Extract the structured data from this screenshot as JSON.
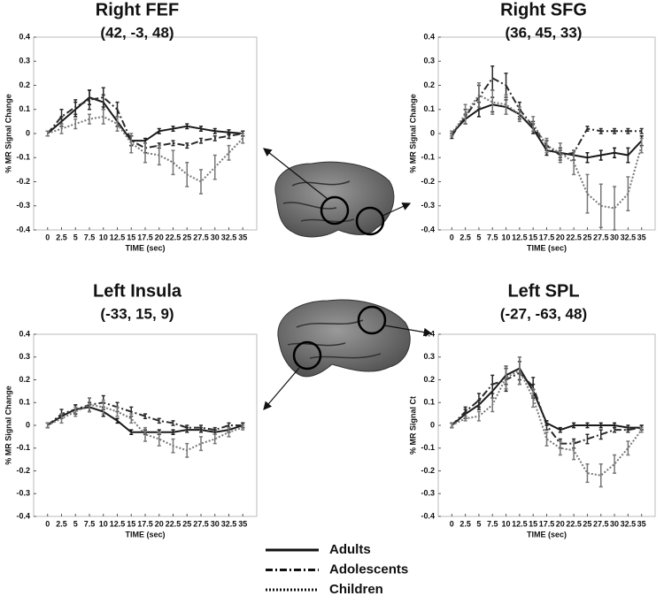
{
  "chart_data": [
    {
      "type": "line",
      "title": "Right FEF",
      "subtitle": "(42, -3, 48)",
      "xlabel": "TIME (sec)",
      "ylabel": "% MR Signal Change",
      "x": [
        0,
        2.5,
        5,
        7.5,
        10,
        12.5,
        15,
        17.5,
        20,
        22.5,
        25,
        27.5,
        30,
        32.5,
        35
      ],
      "xlim": [
        -2.5,
        37.5
      ],
      "xticks": [
        0,
        2.5,
        5,
        7.5,
        10,
        12.5,
        15,
        17.5,
        20,
        22.5,
        25,
        27.5,
        30,
        32.5,
        35
      ],
      "ylim": [
        -0.4,
        0.4
      ],
      "yticks": [
        0.4,
        0.3,
        0.2,
        0.1,
        0,
        -0.1,
        -0.2,
        -0.3,
        -0.4
      ],
      "series": [
        {
          "style": "solid",
          "color": "#1a1a1a",
          "values": [
            0,
            0.05,
            0.1,
            0.15,
            0.13,
            0.05,
            -0.03,
            -0.03,
            0.01,
            0.02,
            0.03,
            0.02,
            0.01,
            0.005,
            0
          ],
          "errors": [
            0.01,
            0.02,
            0.03,
            0.03,
            0.03,
            0.02,
            0.02,
            0.01,
            0.01,
            0.01,
            0.01,
            0.01,
            0.01,
            0.01,
            0.01
          ]
        },
        {
          "style": "dashdot",
          "color": "#2a2a2a",
          "values": [
            0,
            0.07,
            0.11,
            0.14,
            0.15,
            0.1,
            -0.03,
            -0.06,
            -0.05,
            -0.04,
            -0.05,
            -0.03,
            -0.02,
            -0.01,
            0
          ],
          "errors": [
            0.01,
            0.03,
            0.03,
            0.04,
            0.04,
            0.03,
            0.02,
            0.02,
            0.01,
            0.01,
            0.01,
            0.01,
            0.01,
            0.01,
            0.01
          ]
        },
        {
          "style": "dotted",
          "color": "#777777",
          "values": [
            0,
            0.02,
            0.04,
            0.06,
            0.07,
            0.04,
            -0.04,
            -0.08,
            -0.09,
            -0.12,
            -0.17,
            -0.2,
            -0.14,
            -0.08,
            -0.02
          ],
          "errors": [
            0.01,
            0.02,
            0.02,
            0.02,
            0.03,
            0.03,
            0.04,
            0.04,
            0.04,
            0.05,
            0.05,
            0.05,
            0.05,
            0.03,
            0.02
          ]
        }
      ]
    },
    {
      "type": "line",
      "title": "Right SFG",
      "subtitle": "(36, 45, 33)",
      "xlabel": "TIME (sec)",
      "ylabel": "% MR Signal Change",
      "x": [
        0,
        2.5,
        5,
        7.5,
        10,
        12.5,
        15,
        17.5,
        20,
        22.5,
        25,
        27.5,
        30,
        32.5,
        35
      ],
      "xlim": [
        -2.5,
        37.5
      ],
      "xticks": [
        0,
        2.5,
        5,
        7.5,
        10,
        12.5,
        15,
        17.5,
        20,
        22.5,
        25,
        27.5,
        30,
        32.5,
        35
      ],
      "ylim": [
        -0.4,
        0.4
      ],
      "yticks": [
        0.4,
        0.3,
        0.2,
        0.1,
        0,
        -0.1,
        -0.2,
        -0.3,
        -0.4
      ],
      "series": [
        {
          "style": "solid",
          "color": "#1a1a1a",
          "values": [
            0,
            0.06,
            0.1,
            0.12,
            0.11,
            0.08,
            0.02,
            -0.07,
            -0.08,
            -0.09,
            -0.1,
            -0.09,
            -0.08,
            -0.09,
            -0.03
          ],
          "errors": [
            0.01,
            0.02,
            0.03,
            0.03,
            0.03,
            0.02,
            0.02,
            0.02,
            0.02,
            0.02,
            0.02,
            0.02,
            0.02,
            0.03,
            0.02
          ]
        },
        {
          "style": "dashdot",
          "color": "#2a2a2a",
          "values": [
            -0.01,
            0.07,
            0.15,
            0.23,
            0.2,
            0.1,
            0.03,
            -0.05,
            -0.09,
            -0.08,
            0.02,
            0.01,
            0.01,
            0.01,
            0.01
          ],
          "errors": [
            0.01,
            0.03,
            0.05,
            0.05,
            0.05,
            0.03,
            0.02,
            0.02,
            0.02,
            0.01,
            0.01,
            0.01,
            0.01,
            0.01,
            0.01
          ]
        },
        {
          "style": "dotted",
          "color": "#777777",
          "values": [
            0,
            0.08,
            0.16,
            0.13,
            0.12,
            0.08,
            0.04,
            -0.05,
            -0.08,
            -0.12,
            -0.25,
            -0.3,
            -0.31,
            -0.25,
            -0.05
          ],
          "errors": [
            0.01,
            0.04,
            0.05,
            0.05,
            0.04,
            0.03,
            0.03,
            0.03,
            0.04,
            0.05,
            0.08,
            0.09,
            0.09,
            0.07,
            0.03
          ]
        }
      ]
    },
    {
      "type": "line",
      "title": "Left Insula",
      "subtitle": "(-33, 15, 9)",
      "xlabel": "TIME (sec)",
      "ylabel": "% MR Signal Change",
      "x": [
        0,
        2.5,
        5,
        7.5,
        10,
        12.5,
        15,
        17.5,
        20,
        22.5,
        25,
        27.5,
        30,
        32.5,
        35
      ],
      "xlim": [
        -2.5,
        37.5
      ],
      "xticks": [
        0,
        2.5,
        5,
        7.5,
        10,
        12.5,
        15,
        17.5,
        20,
        22.5,
        25,
        27.5,
        30,
        32.5,
        35
      ],
      "ylim": [
        -0.4,
        0.4
      ],
      "yticks": [
        0.4,
        0.3,
        0.2,
        0.1,
        0,
        -0.1,
        -0.2,
        -0.3,
        -0.4
      ],
      "series": [
        {
          "style": "solid",
          "color": "#1a1a1a",
          "values": [
            0,
            0.04,
            0.07,
            0.08,
            0.06,
            0.02,
            -0.03,
            -0.03,
            -0.03,
            -0.03,
            -0.02,
            -0.02,
            -0.03,
            -0.02,
            0
          ],
          "errors": [
            0.01,
            0.01,
            0.02,
            0.02,
            0.02,
            0.01,
            0.01,
            0.01,
            0.01,
            0.01,
            0.01,
            0.01,
            0.01,
            0.01,
            0.01
          ]
        },
        {
          "style": "dashdot",
          "color": "#2a2a2a",
          "values": [
            0,
            0.05,
            0.07,
            0.09,
            0.1,
            0.08,
            0.06,
            0.04,
            0.02,
            0.01,
            -0.01,
            -0.01,
            -0.02,
            0,
            0
          ],
          "errors": [
            0.01,
            0.02,
            0.02,
            0.03,
            0.03,
            0.02,
            0.02,
            0.01,
            0.01,
            0.01,
            0.01,
            0.01,
            0.01,
            0.01,
            0.01
          ]
        },
        {
          "style": "dotted",
          "color": "#777777",
          "values": [
            0,
            0.03,
            0.06,
            0.09,
            0.08,
            0.06,
            0.03,
            -0.04,
            -0.06,
            -0.09,
            -0.11,
            -0.08,
            -0.06,
            -0.03,
            -0.01
          ],
          "errors": [
            0.01,
            0.02,
            0.02,
            0.03,
            0.03,
            0.02,
            0.02,
            0.03,
            0.03,
            0.03,
            0.03,
            0.03,
            0.02,
            0.02,
            0.01
          ]
        }
      ]
    },
    {
      "type": "line",
      "title": "Left SPL",
      "subtitle": "(-27, -63, 48)",
      "xlabel": "TIME (sec)",
      "ylabel": "% MR Signal Ct",
      "x": [
        0,
        2.5,
        5,
        7.5,
        10,
        12.5,
        15,
        17.5,
        20,
        22.5,
        25,
        27.5,
        30,
        32.5,
        35
      ],
      "xlim": [
        -2.5,
        37.5
      ],
      "xticks": [
        0,
        2.5,
        5,
        7.5,
        10,
        12.5,
        15,
        17.5,
        20,
        22.5,
        25,
        27.5,
        30,
        32.5,
        35
      ],
      "ylim": [
        -0.4,
        0.4
      ],
      "yticks": [
        0.4,
        0.3,
        0.2,
        0.1,
        0,
        -0.1,
        -0.2,
        -0.3,
        -0.4
      ],
      "series": [
        {
          "style": "solid",
          "color": "#1a1a1a",
          "values": [
            0,
            0.05,
            0.09,
            0.15,
            0.22,
            0.25,
            0.15,
            0.01,
            -0.02,
            0,
            0,
            0,
            0,
            -0.01,
            -0.01
          ],
          "errors": [
            0.01,
            0.02,
            0.02,
            0.03,
            0.04,
            0.05,
            0.03,
            0.01,
            0.01,
            0.01,
            0.01,
            0.01,
            0.01,
            0.01,
            0.01
          ]
        },
        {
          "style": "dashdot",
          "color": "#2a2a2a",
          "values": [
            0,
            0.06,
            0.11,
            0.18,
            0.2,
            0.23,
            0.17,
            0,
            -0.08,
            -0.08,
            -0.06,
            -0.04,
            -0.02,
            -0.02,
            -0.01
          ],
          "errors": [
            0.01,
            0.02,
            0.03,
            0.04,
            0.05,
            0.05,
            0.04,
            0.02,
            0.02,
            0.02,
            0.02,
            0.02,
            0.01,
            0.01,
            0.01
          ]
        },
        {
          "style": "dotted",
          "color": "#777777",
          "values": [
            0,
            0.03,
            0.04,
            0.09,
            0.21,
            0.24,
            0.12,
            -0.06,
            -0.1,
            -0.11,
            -0.21,
            -0.22,
            -0.17,
            -0.1,
            -0.02
          ],
          "errors": [
            0.01,
            0.01,
            0.02,
            0.03,
            0.05,
            0.06,
            0.04,
            0.03,
            0.03,
            0.04,
            0.04,
            0.05,
            0.04,
            0.03,
            0.01
          ]
        }
      ]
    }
  ],
  "legend": [
    {
      "label": "Adults",
      "style": "solid"
    },
    {
      "label": "Adolescents",
      "style": "dashdot"
    },
    {
      "label": "Children",
      "style": "dotted"
    }
  ]
}
